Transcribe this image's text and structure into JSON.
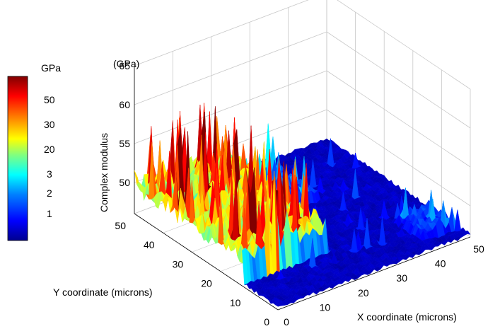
{
  "chart_data": {
    "type": "surface3d",
    "zlabel": "Complex modulus",
    "zunit": "(GPa)",
    "xlabel": "X coordinate (microns)",
    "ylabel": "Y coordinate (microns)",
    "xlim": [
      0,
      50
    ],
    "ylim": [
      0,
      50
    ],
    "zlim": [
      46,
      65
    ],
    "xticks": [
      0,
      10,
      20,
      30,
      40,
      50
    ],
    "yticks": [
      0,
      10,
      20,
      30,
      40,
      50
    ],
    "zticks": [
      50,
      55,
      60,
      65
    ],
    "grid": true,
    "colorbar": {
      "title": "GPa",
      "labels": [
        "50",
        "30",
        "20",
        "3",
        "2",
        "1"
      ],
      "colormap": [
        "#00008f",
        "#0000ff",
        "#0080ff",
        "#00ffff",
        "#80ff80",
        "#ffff00",
        "#ff8000",
        "#ff0000",
        "#800000"
      ],
      "placement": "left"
    },
    "description_regions": {
      "high_modulus_region": "x 0-25, y 10-50 (red, dense peaks)",
      "low_modulus_region": "x 25-50 and y 0-15 (blue, flat)"
    }
  }
}
